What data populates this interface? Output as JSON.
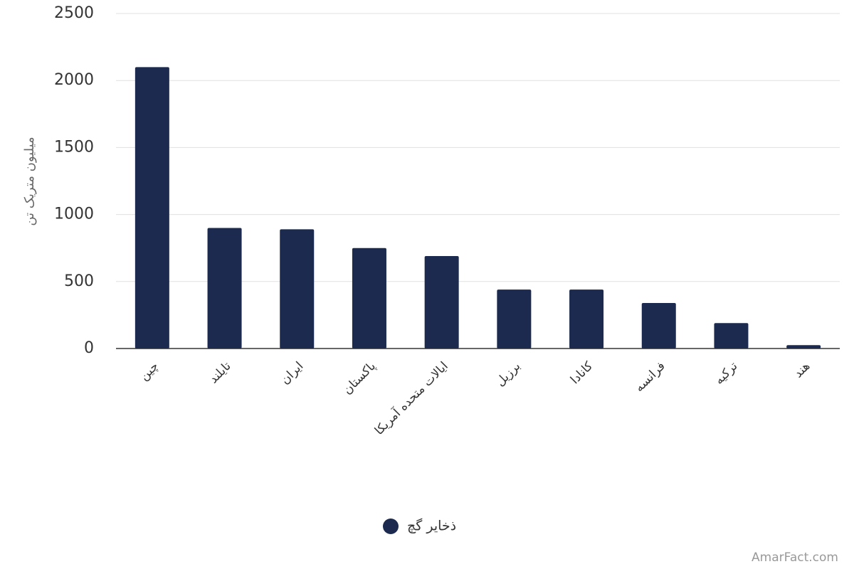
{
  "chart_data": {
    "type": "bar",
    "y_label": "میلیون متریک تن",
    "categories": [
      "چین",
      "تایلند",
      "ایران",
      "پاکستان",
      "ایالات متحده آمریکا",
      "برزیل",
      "کانادا",
      "فرانسه",
      "ترکیه",
      "هند"
    ],
    "series": [
      {
        "name": "ذخایر گچ",
        "color": "#1b2a4e",
        "values": [
          2100,
          900,
          890,
          750,
          690,
          440,
          440,
          340,
          190,
          25
        ]
      }
    ],
    "ylim": [
      0,
      2500
    ],
    "yticks": [
      0,
      500,
      1000,
      1500,
      2000,
      2500
    ],
    "grid": true,
    "legend": "bottom",
    "watermark": "AmarFact.com"
  }
}
